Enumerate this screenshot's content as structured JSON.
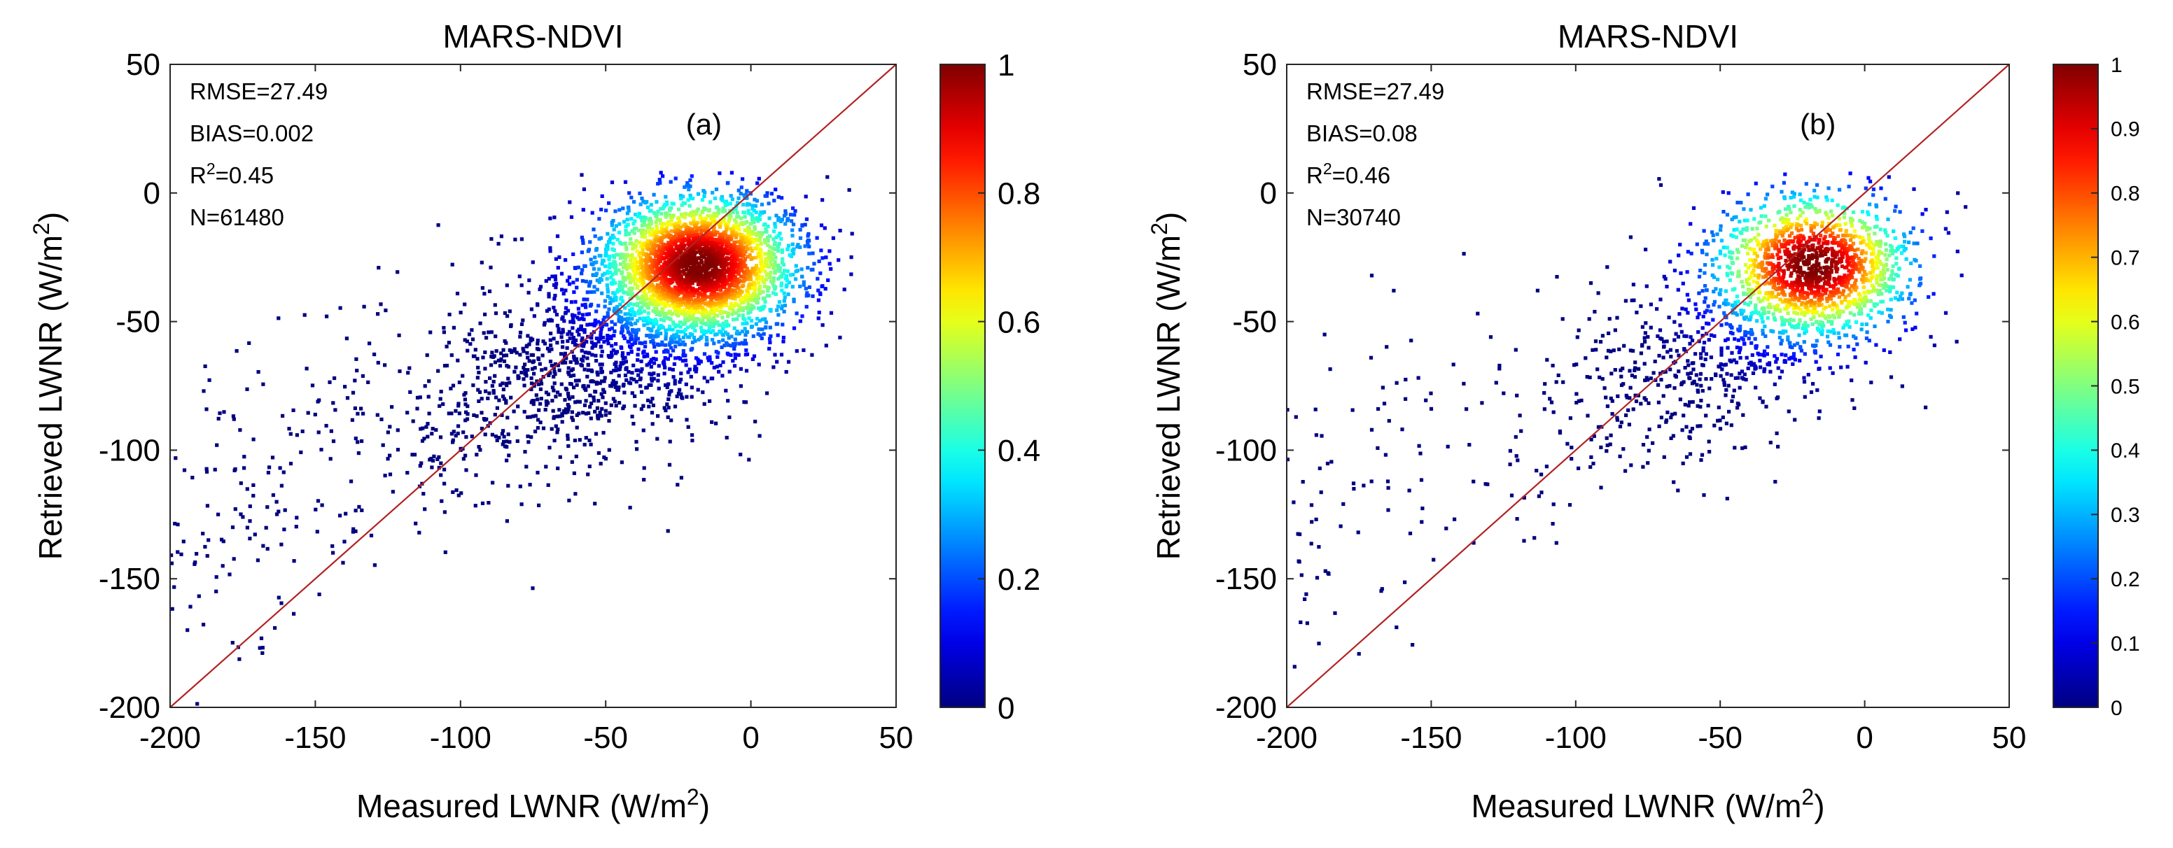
{
  "chart_data": [
    {
      "type": "scatter",
      "density_colored": true,
      "title": "MARS-NDVI",
      "panel_label": "(a)",
      "xlabel": "Measured LWNR (W/m",
      "ylabel": "Retrieved LWNR (W/m",
      "label_superscript": "2",
      "label_suffix": ")",
      "xlim": [
        -200,
        50
      ],
      "ylim": [
        -200,
        50
      ],
      "xticks": [
        -200,
        -150,
        -100,
        -50,
        0,
        50
      ],
      "yticks": [
        -200,
        -150,
        -100,
        -50,
        0,
        50
      ],
      "stats": [
        {
          "prefix": "RMSE=27.49",
          "sup": "",
          "suffix": ""
        },
        {
          "prefix": "BIAS=0.002",
          "sup": "",
          "suffix": ""
        },
        {
          "prefix": "R",
          "sup": "2",
          "suffix": "=0.45"
        },
        {
          "prefix": "N=61480",
          "sup": "",
          "suffix": ""
        }
      ],
      "n_points": 61480,
      "density_peak": {
        "x": -18,
        "y": -28
      },
      "reference_line": {
        "type": "1:1",
        "color": "#b22222"
      },
      "colorbar": {
        "range": [
          0,
          1
        ],
        "ticks": [
          0,
          0.2,
          0.4,
          0.6,
          0.8,
          1
        ],
        "tick_labels": [
          "0",
          "0.2",
          "0.4",
          "0.6",
          "0.8",
          "1"
        ]
      },
      "seed": 7
    },
    {
      "type": "scatter",
      "density_colored": true,
      "title": "MARS-NDVI",
      "panel_label": "(b)",
      "xlabel": "Measured LWNR (W/m",
      "ylabel": "Retrieved LWNR (W/m",
      "label_superscript": "2",
      "label_suffix": ")",
      "xlim": [
        -200,
        50
      ],
      "ylim": [
        -200,
        50
      ],
      "xticks": [
        -200,
        -150,
        -100,
        -50,
        0,
        50
      ],
      "yticks": [
        -200,
        -150,
        -100,
        -50,
        0,
        50
      ],
      "stats": [
        {
          "prefix": "RMSE=27.49",
          "sup": "",
          "suffix": ""
        },
        {
          "prefix": "BIAS=0.08",
          "sup": "",
          "suffix": ""
        },
        {
          "prefix": "R",
          "sup": "2",
          "suffix": "=0.46"
        },
        {
          "prefix": "N=30740",
          "sup": "",
          "suffix": ""
        }
      ],
      "n_points": 30740,
      "density_peak": {
        "x": -18,
        "y": -28
      },
      "reference_line": {
        "type": "1:1",
        "color": "#b22222"
      },
      "colorbar": {
        "range": [
          0,
          1
        ],
        "ticks": [
          0,
          0.1,
          0.2,
          0.3,
          0.4,
          0.5,
          0.6,
          0.7,
          0.8,
          0.9,
          1
        ],
        "tick_labels": [
          "0",
          "0.1",
          "0.2",
          "0.3",
          "0.4",
          "0.5",
          "0.6",
          "0.7",
          "0.8",
          "0.9",
          "1"
        ]
      },
      "seed": 13
    }
  ]
}
